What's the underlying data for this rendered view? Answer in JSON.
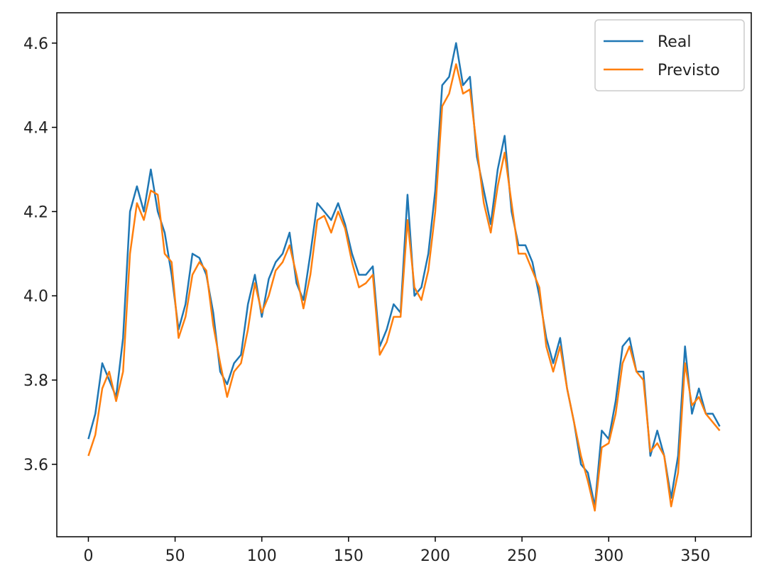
{
  "chart_data": {
    "type": "line",
    "x": [
      0,
      4,
      8,
      12,
      16,
      20,
      24,
      28,
      32,
      36,
      40,
      44,
      48,
      52,
      56,
      60,
      64,
      68,
      72,
      76,
      80,
      84,
      88,
      92,
      96,
      100,
      104,
      108,
      112,
      116,
      120,
      124,
      128,
      132,
      136,
      140,
      144,
      148,
      152,
      156,
      160,
      164,
      168,
      172,
      176,
      180,
      184,
      188,
      192,
      196,
      200,
      204,
      208,
      212,
      216,
      220,
      224,
      228,
      232,
      236,
      240,
      244,
      248,
      252,
      256,
      260,
      264,
      268,
      272,
      276,
      280,
      284,
      288,
      292,
      296,
      300,
      304,
      308,
      312,
      316,
      320,
      324,
      328,
      332,
      336,
      340,
      344,
      348,
      352,
      356,
      360,
      364
    ],
    "series": [
      {
        "name": "Real",
        "color": "#1f77b4",
        "values": [
          3.66,
          3.72,
          3.84,
          3.8,
          3.76,
          3.9,
          4.2,
          4.26,
          4.2,
          4.3,
          4.2,
          4.15,
          4.05,
          3.92,
          3.98,
          4.1,
          4.09,
          4.05,
          3.96,
          3.82,
          3.79,
          3.84,
          3.86,
          3.98,
          4.05,
          3.95,
          4.04,
          4.08,
          4.1,
          4.15,
          4.03,
          3.99,
          4.1,
          4.22,
          4.2,
          4.18,
          4.22,
          4.17,
          4.1,
          4.05,
          4.05,
          4.07,
          3.88,
          3.92,
          3.98,
          3.96,
          4.24,
          4.0,
          4.02,
          4.1,
          4.25,
          4.5,
          4.52,
          4.6,
          4.5,
          4.52,
          4.33,
          4.25,
          4.17,
          4.3,
          4.38,
          4.2,
          4.12,
          4.12,
          4.08,
          4.0,
          3.9,
          3.84,
          3.9,
          3.78,
          3.7,
          3.6,
          3.58,
          3.5,
          3.68,
          3.66,
          3.75,
          3.88,
          3.9,
          3.82,
          3.82,
          3.62,
          3.68,
          3.62,
          3.52,
          3.62,
          3.88,
          3.72,
          3.78,
          3.72,
          3.72,
          3.69
        ]
      },
      {
        "name": "Previsto",
        "color": "#ff7f0e",
        "values": [
          3.62,
          3.67,
          3.78,
          3.82,
          3.75,
          3.82,
          4.1,
          4.22,
          4.18,
          4.25,
          4.24,
          4.1,
          4.08,
          3.9,
          3.95,
          4.05,
          4.08,
          4.06,
          3.93,
          3.84,
          3.76,
          3.82,
          3.84,
          3.92,
          4.03,
          3.96,
          4.0,
          4.06,
          4.08,
          4.12,
          4.05,
          3.97,
          4.05,
          4.18,
          4.19,
          4.15,
          4.2,
          4.16,
          4.08,
          4.02,
          4.03,
          4.05,
          3.86,
          3.89,
          3.95,
          3.95,
          4.18,
          4.02,
          3.99,
          4.06,
          4.2,
          4.45,
          4.48,
          4.55,
          4.48,
          4.49,
          4.35,
          4.22,
          4.15,
          4.26,
          4.34,
          4.22,
          4.1,
          4.1,
          4.06,
          4.02,
          3.88,
          3.82,
          3.88,
          3.78,
          3.7,
          3.62,
          3.56,
          3.49,
          3.64,
          3.65,
          3.72,
          3.84,
          3.88,
          3.82,
          3.8,
          3.63,
          3.65,
          3.62,
          3.5,
          3.58,
          3.84,
          3.74,
          3.76,
          3.72,
          3.7,
          3.68
        ]
      }
    ],
    "xlim": [
      -18.2,
      382.2
    ],
    "ylim": [
      3.428,
      4.672
    ],
    "xticks": [
      0,
      50,
      100,
      150,
      200,
      250,
      300,
      350
    ],
    "yticks": [
      3.6,
      3.8,
      {
        "value": 4,
        "label": "4.0"
      },
      4.2,
      4.4,
      4.6
    ],
    "legend": "upper right"
  }
}
